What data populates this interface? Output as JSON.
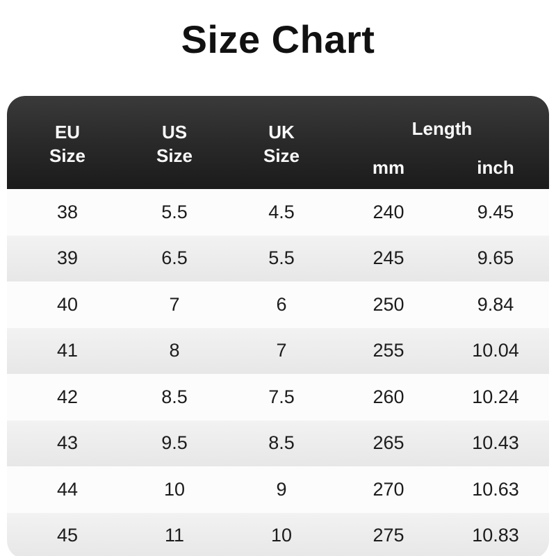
{
  "title": "Size Chart",
  "table": {
    "columns": [
      {
        "line1": "EU",
        "line2": "Size"
      },
      {
        "line1": "US",
        "line2": "Size"
      },
      {
        "line1": "UK",
        "line2": "Size"
      },
      {
        "group": "Length",
        "sub": [
          "mm",
          "inch"
        ]
      }
    ],
    "rows": [
      [
        "38",
        "5.5",
        "4.5",
        "240",
        "9.45"
      ],
      [
        "39",
        "6.5",
        "5.5",
        "245",
        "9.65"
      ],
      [
        "40",
        "7",
        "6",
        "250",
        "9.84"
      ],
      [
        "41",
        "8",
        "7",
        "255",
        "10.04"
      ],
      [
        "42",
        "8.5",
        "7.5",
        "260",
        "10.24"
      ],
      [
        "43",
        "9.5",
        "8.5",
        "265",
        "10.43"
      ],
      [
        "44",
        "10",
        "9",
        "270",
        "10.63"
      ],
      [
        "45",
        "11",
        "10",
        "275",
        "10.83"
      ]
    ]
  },
  "colors": {
    "header_gradient_top": "#3a3a3a",
    "header_gradient_bottom": "#1b1b1b",
    "header_text": "#fafafa",
    "row_white": "#fcfcfc",
    "row_gray_top": "#f2f2f2",
    "row_gray_bottom": "#e7e7e7",
    "body_text": "#1c1c1c",
    "title_text": "#111111",
    "page_background": "#ffffff"
  },
  "chart_data": {
    "type": "table",
    "title": "Size Chart",
    "columns": [
      "EU Size",
      "US Size",
      "UK Size",
      "Length mm",
      "Length inch"
    ],
    "rows": [
      [
        38,
        5.5,
        4.5,
        240,
        9.45
      ],
      [
        39,
        6.5,
        5.5,
        245,
        9.65
      ],
      [
        40,
        7,
        6,
        250,
        9.84
      ],
      [
        41,
        8,
        7,
        255,
        10.04
      ],
      [
        42,
        8.5,
        7.5,
        260,
        10.24
      ],
      [
        43,
        9.5,
        8.5,
        265,
        10.43
      ],
      [
        44,
        10,
        9,
        270,
        10.63
      ],
      [
        45,
        11,
        10,
        275,
        10.83
      ]
    ],
    "layout": {
      "header_grouped_column": "Length",
      "grouped_subcolumns": [
        "mm",
        "inch"
      ],
      "alternating_row_shading": true
    }
  }
}
